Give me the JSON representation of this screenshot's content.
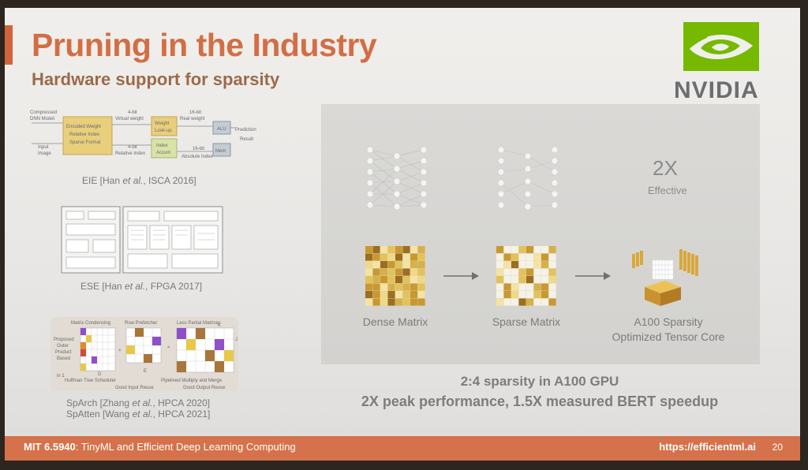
{
  "slide": {
    "title": "Pruning in the Industry",
    "subtitle": "Hardware support for sparsity",
    "logo_text": "NVIDIA",
    "brand_color": "#76b900",
    "accent_color": "#d26e45"
  },
  "figures": {
    "eie": {
      "caption_pre": "EIE [Han ",
      "caption_etal": "et al.",
      "caption_post": ", ISCA 2016]",
      "labels": {
        "compressed": "Compressed",
        "dnn_model": "DNN Model",
        "input": "Input",
        "image": "Image",
        "encoded": "Encoded Weight",
        "relative": "Relative Index",
        "sparse": "Sparse Format",
        "four_bit_virtual_top": "4-bit",
        "virtual_weight": "Virtual weight",
        "four_bit_relative_top": "4-bit",
        "relative_index": "Relative Index",
        "weight": "Weight",
        "lookup": "Look-up",
        "index": "Index",
        "accum": "Accum",
        "sixteen_bit_real_top": "16-bit",
        "real_weight": "Real weight",
        "sixteen_bit_abs_top": "16-bit",
        "absolute_index": "Absolute Index",
        "alu": "ALU",
        "mem": "Mem",
        "prediction": "Prediction",
        "result": "Result"
      }
    },
    "ese": {
      "caption_pre": "ESE [Han ",
      "caption_etal": "et al.",
      "caption_post": ", FPGA 2017]"
    },
    "sparch": {
      "labels": {
        "matrix_condensing": "Matrix Condensing",
        "row_prefetcher": "Row Prefetcher",
        "less_partial": "Less Partial Matrices",
        "proposed": "Proposed",
        "outer": "Outer",
        "product": "Product",
        "based": "Based",
        "huffman": "Huffman Tree Scheduler",
        "pipelined": "Pipelined Multiply and Merge",
        "good_input": "Good Input Reuse",
        "good_output": "Good Output Reuse",
        "d_label": "D",
        "e_label": "E",
        "k_label": "K",
        "j_label": "J",
        "in_label": "in 1"
      },
      "caption1_pre": "SpArch [Zhang ",
      "caption1_etal": "et al.",
      "caption1_post": ", HPCA 2020]",
      "caption2_pre": "SpAtten [Wang ",
      "caption2_etal": "et al.",
      "caption2_post": ", HPCA 2021]"
    }
  },
  "a100": {
    "speedup_big": "2X",
    "speedup_small": "Effective",
    "dense_label": "Dense Matrix",
    "sparse_label": "Sparse Matrix",
    "core_label_1": "A100 Sparsity",
    "core_label_2": "Optimized Tensor Core",
    "caption_1": "2:4 sparsity in A100 GPU",
    "caption_2": "2X peak performance, 1.5X measured BERT speedup"
  },
  "footer": {
    "course_code": "MIT 6.5940",
    "course_name": ": TinyML and Efficient Deep Learning Computing",
    "url": "https://efficientml.ai",
    "page_number": "20"
  }
}
